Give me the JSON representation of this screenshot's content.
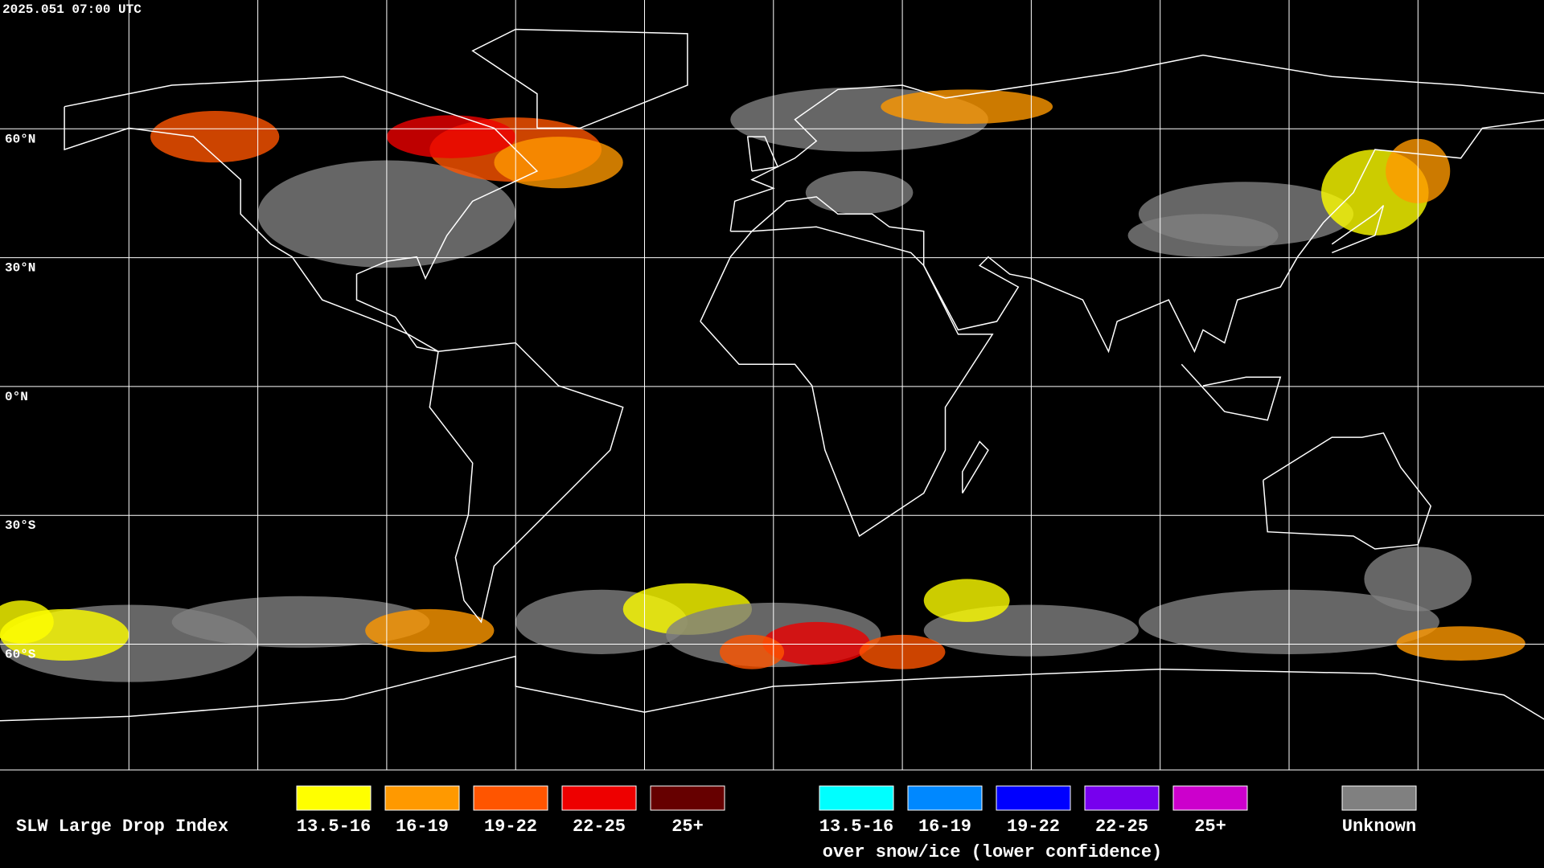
{
  "header": {
    "timestamp": "2025.051 07:00 UTC"
  },
  "map": {
    "lat_labels": [
      "60°N",
      "30°N",
      "0°N",
      "30°S",
      "60°S"
    ]
  },
  "legend": {
    "title": "SLW Large Drop Index",
    "items": [
      {
        "label": "13.5-16",
        "color": "#ffff00"
      },
      {
        "label": "16-19",
        "color": "#ff9900"
      },
      {
        "label": "19-22",
        "color": "#ff5500"
      },
      {
        "label": "22-25",
        "color": "#ee0000"
      },
      {
        "label": "25+",
        "color": "#660000"
      }
    ],
    "snow_items": [
      {
        "label": "13.5-16",
        "color": "#00ffff"
      },
      {
        "label": "16-19",
        "color": "#0088ff"
      },
      {
        "label": "19-22",
        "color": "#0000ff"
      },
      {
        "label": "22-25",
        "color": "#7700ee"
      },
      {
        "label": "25+",
        "color": "#cc00cc"
      }
    ],
    "snow_caption": "over snow/ice (lower confidence)",
    "unknown": {
      "label": "Unknown",
      "color": "#808080"
    }
  }
}
